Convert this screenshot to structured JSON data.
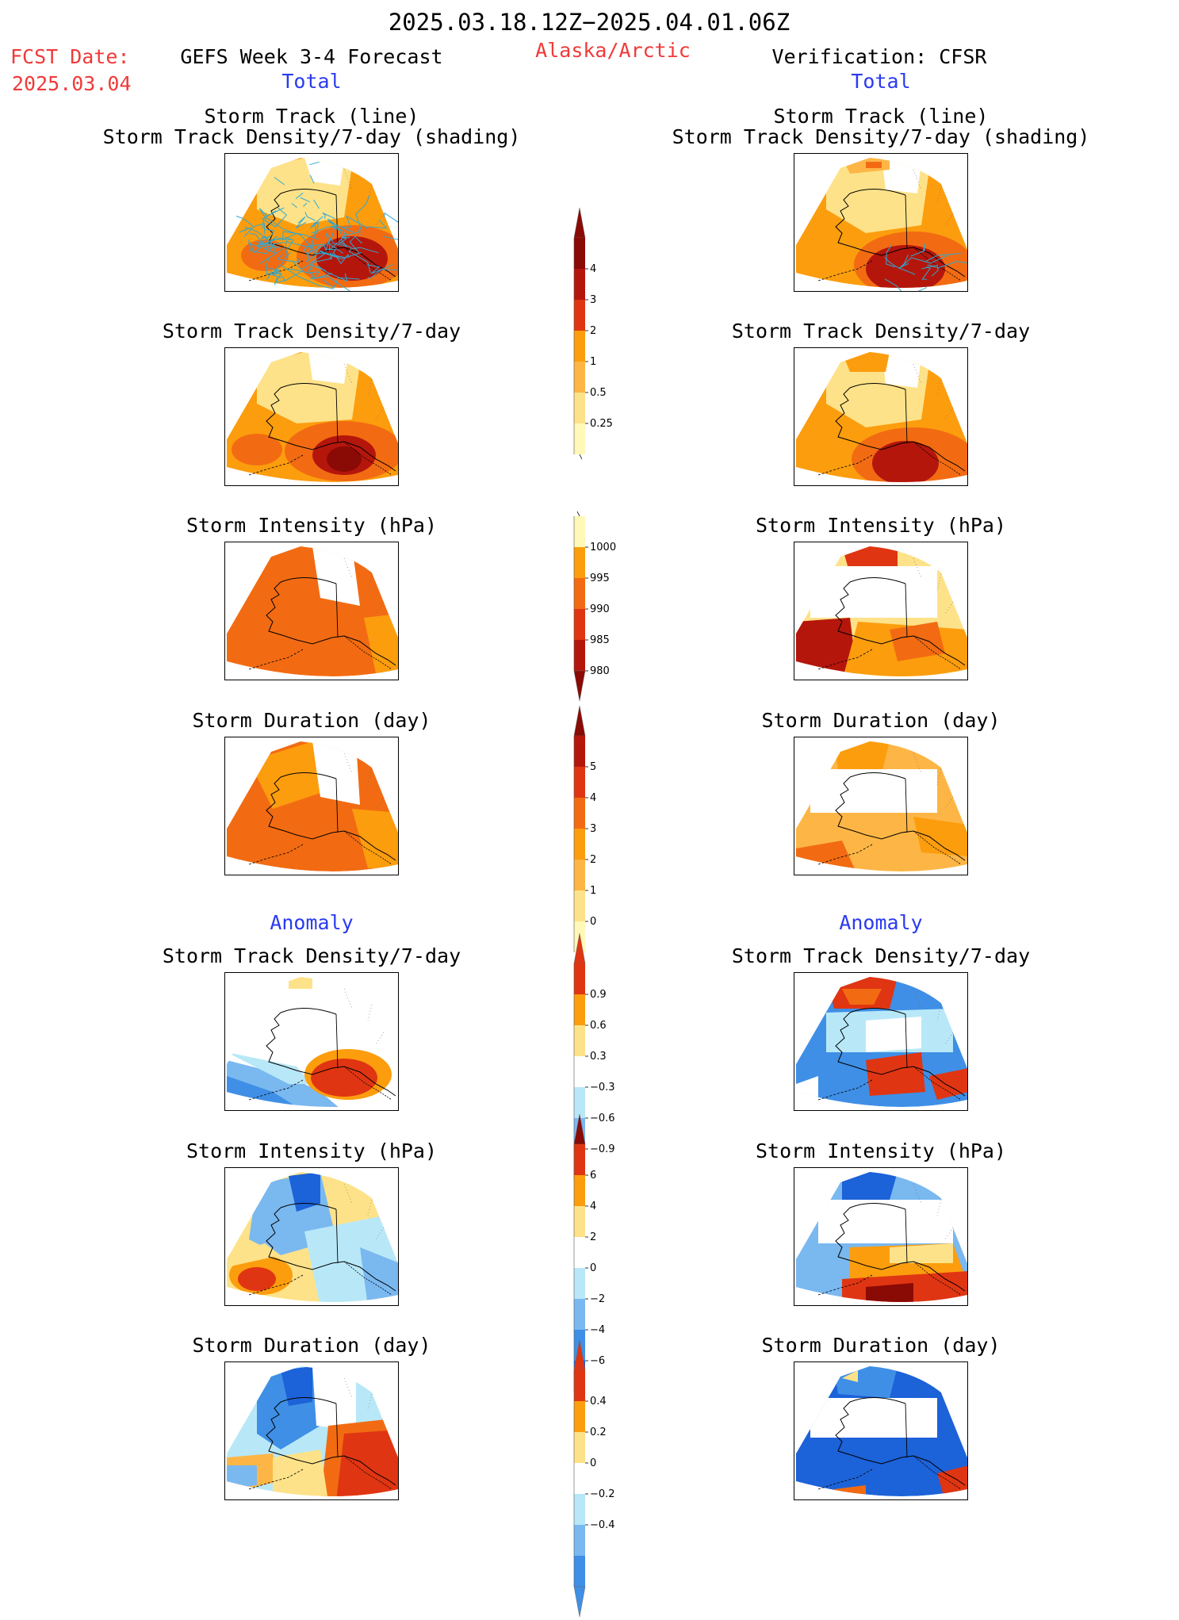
{
  "header": {
    "date_range": "2025.03.18.12Z−2025.04.01.06Z",
    "fcst_label": "FCST Date:",
    "fcst_date": "2025.03.04",
    "model": "GEFS Week 3-4 Forecast",
    "region": "Alaska/Arctic",
    "verification": "Verification: CFSR",
    "left_total": "Total",
    "right_total": "Total",
    "left_anomaly": "Anomaly",
    "right_anomaly": "Anomaly"
  },
  "panels": {
    "track_line": "Storm Track (line)",
    "track_shading": "Storm Track Density/7-day (shading)",
    "density": "Storm Track Density/7-day",
    "intensity": "Storm Intensity (hPa)",
    "duration": "Storm Duration (day)"
  },
  "colors": {
    "c0": "#fff8b8",
    "c1": "#fee289",
    "c2": "#fdb645",
    "c3": "#fc9d0e",
    "c4": "#f26b12",
    "c5": "#e03512",
    "c6": "#b5160c",
    "c7": "#8a0a05",
    "b1": "#b8e8f8",
    "b2": "#7ab8f0",
    "b3": "#3f8fe6",
    "b4": "#1c62d8",
    "track": "#30a8d0"
  },
  "colorbars": {
    "density": {
      "labels": [
        "4",
        "3",
        "2",
        "1",
        "0.5",
        "0.25"
      ]
    },
    "intensity": {
      "labels": [
        "1000",
        "995",
        "990",
        "985",
        "980"
      ]
    },
    "duration": {
      "labels": [
        "5",
        "4",
        "3",
        "2",
        "1",
        "0"
      ]
    },
    "density_anom": {
      "labels": [
        "0.9",
        "0.6",
        "0.3",
        "−0.3",
        "−0.6",
        "−0.9"
      ]
    },
    "intensity_anom": {
      "labels": [
        "6",
        "4",
        "2",
        "0",
        "−2",
        "−4",
        "−6"
      ]
    },
    "duration_anom": {
      "labels": [
        "0.4",
        "0.2",
        "0",
        "−0.2",
        "−0.4"
      ]
    }
  }
}
